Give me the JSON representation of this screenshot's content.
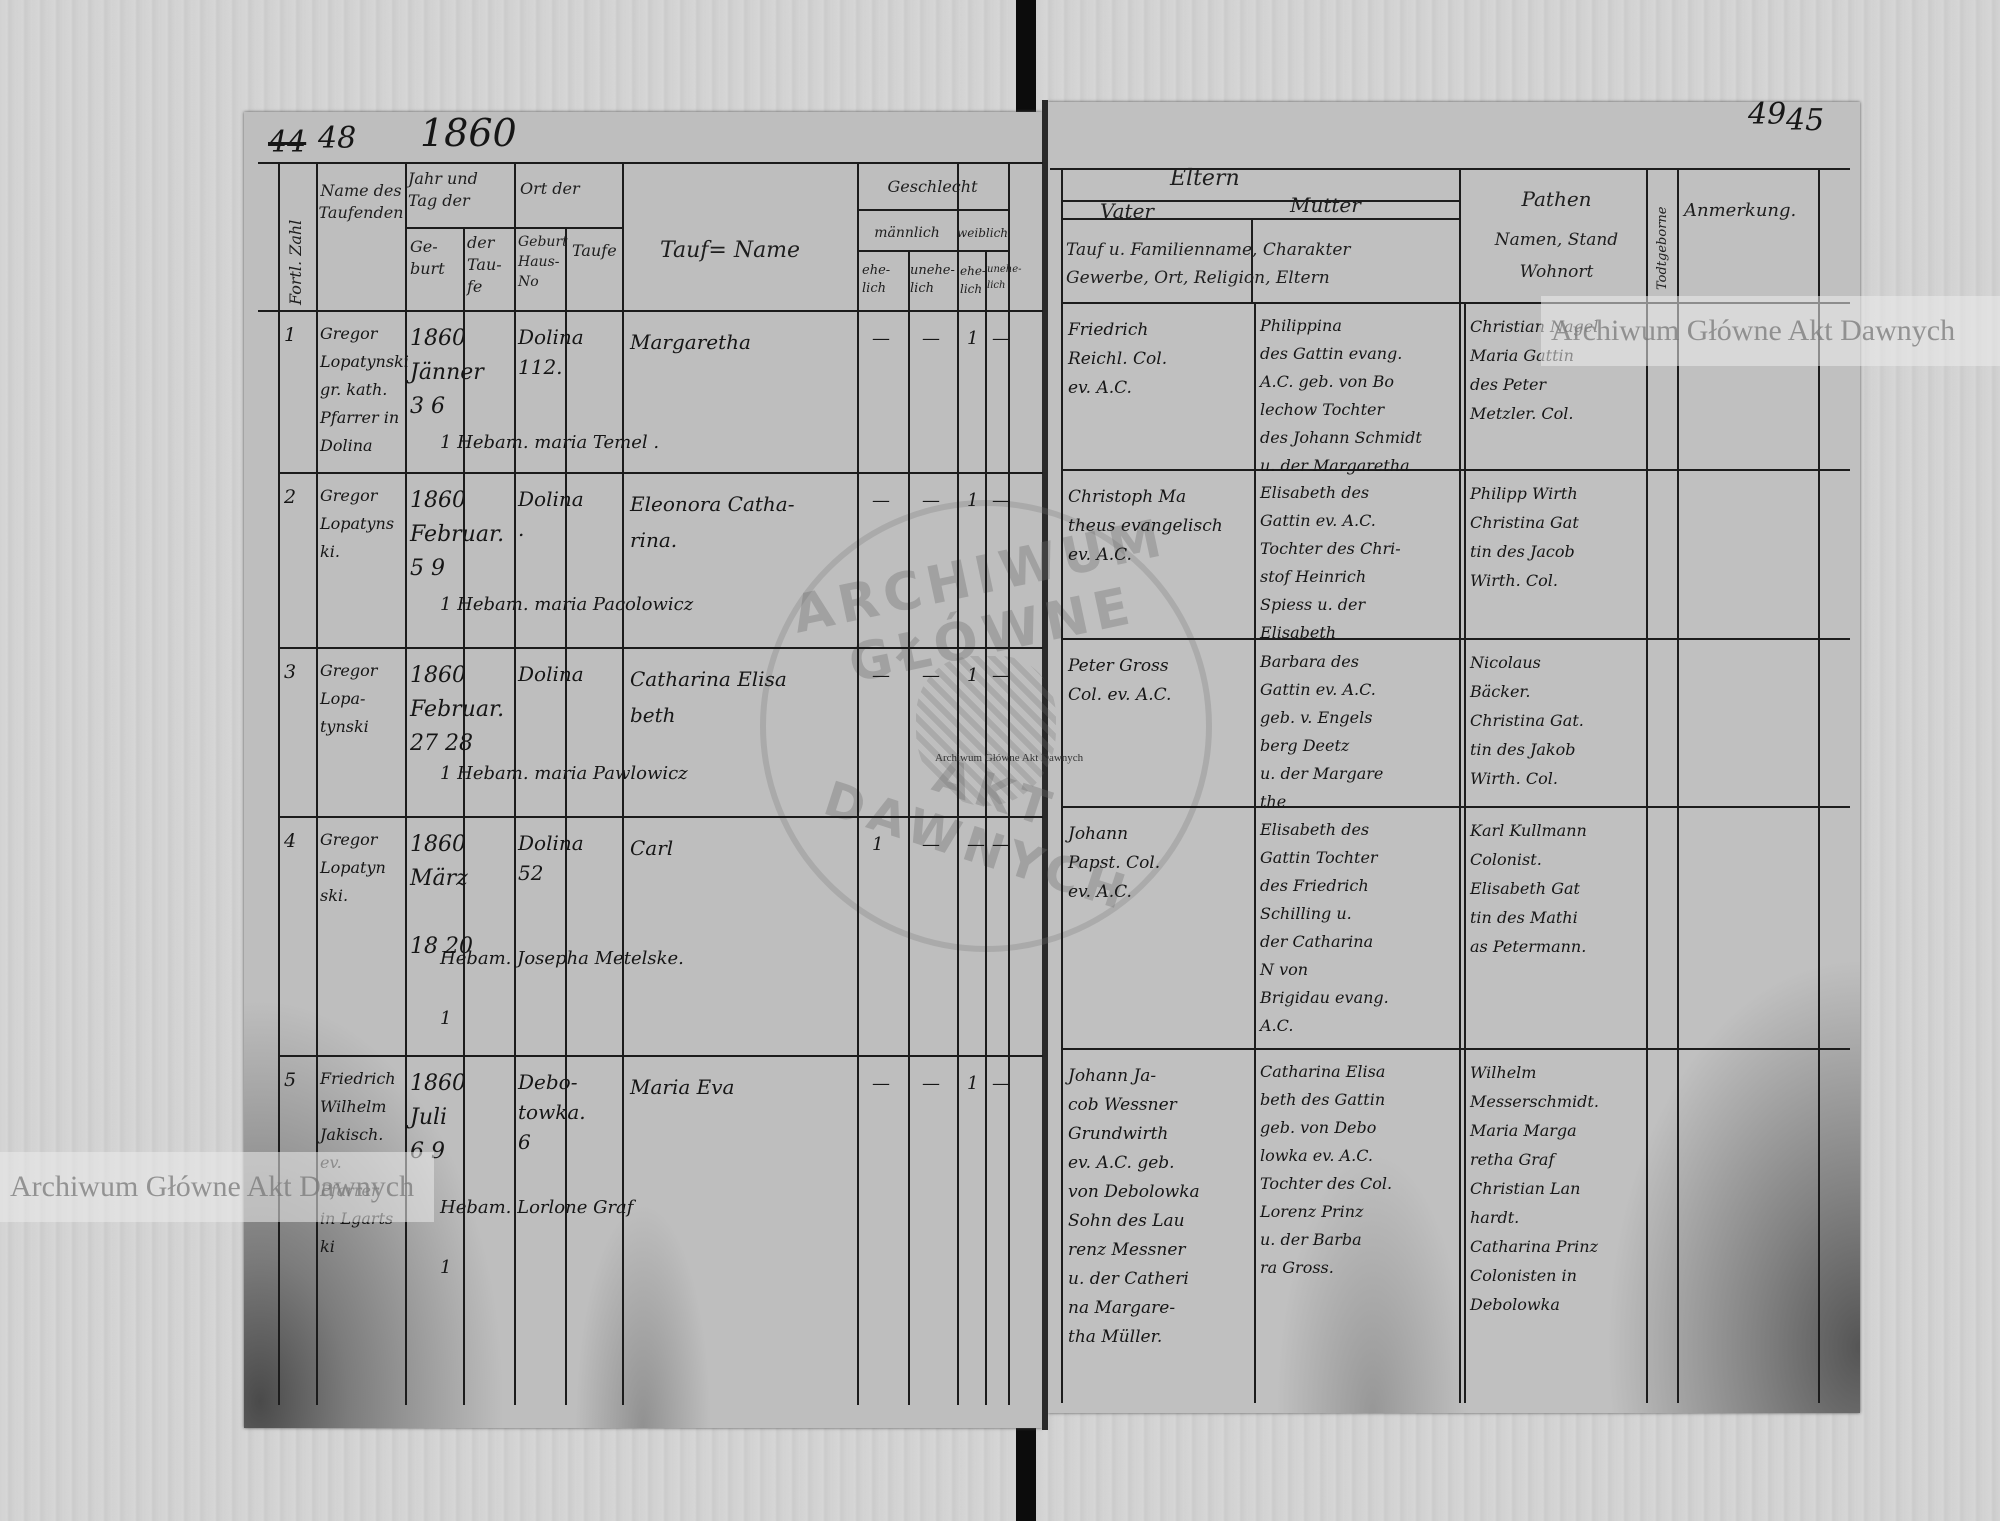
{
  "watermarks": {
    "top_right": "Archiwum Główne Akt Dawnych",
    "left": "Archiwum Główne Akt Dawnych",
    "center_small": "Archiwum Główne Akt Dawnych",
    "stamp_top": "ARCHIWUM GŁÓWNE",
    "stamp_bottom": "AKT DAWNYCH"
  },
  "left_page": {
    "page_number_crossed": "44",
    "page_number": "48",
    "year": "1860",
    "headers": {
      "number": "Fortl. Zahl",
      "priest": "Name des\nTaufenden",
      "date_group": "Jahr und\nTag der",
      "birth": "Ge-\nburt",
      "baptism": "der\nTau-\nfe",
      "place_group": "Ort der",
      "birthplace": "Geburt\nHaus-\nNo",
      "baptism_place": "Taufe",
      "name": "Tauf= Name",
      "sex": "Geschlecht",
      "male": "männlich",
      "female": "weiblich",
      "m_legit": "ehe-\nlich",
      "m_illegit": "unehe-\nlich",
      "f_legit": "ehe-\nlich",
      "f_illegit": "unehe-\nlich"
    }
  },
  "right_page": {
    "page_number": "49",
    "page_number_alt": "45",
    "headers": {
      "parents": "Eltern",
      "father": "Vater",
      "mother": "Mutter",
      "parents_detail": "Tauf u. Familienname, Charakter\nGewerbe, Ort, Religion, Eltern",
      "godparents": "Pathen",
      "godparents_detail": "Namen, Stand\nWohnort",
      "stillborn": "Todtgeborne",
      "remarks": "Anmerkung."
    }
  },
  "entries": [
    {
      "no": "1",
      "priest": "Gregor\nLopatynski\ngr. kath.\nPfarrer in\nDolina",
      "date": "1860\nJänner\n3     6",
      "place": "Dolina\n112.",
      "name": "Margaretha",
      "midwife": "1 Hebam. maria Temel .",
      "sex": [
        "—",
        "—",
        "1",
        "—"
      ],
      "father": "Friedrich\nReichl. Col.\nev. A.C.",
      "mother": "Philippina\ndes Gattin evang.\nA.C. geb. von Bo\nlechow Tochter\ndes Johann Schmidt\nu. der Margaretha",
      "godparents": "Christian Nagel\nMaria Gattin\ndes Peter\nMetzler. Col."
    },
    {
      "no": "2",
      "priest": "Gregor\nLopatyns\nki.",
      "date": "1860\nFebruar.\n5     9",
      "place": "Dolina\n.",
      "name": "Eleonora Catha-\nrina.",
      "midwife": "1 Hebam. maria Pacolowicz",
      "sex": [
        "—",
        "—",
        "1",
        "—"
      ],
      "father": "Christoph Ma\ntheus evangelisch\nev. A.C.",
      "mother": "Elisabeth des\nGattin ev. A.C.\nTochter des Chri-\nstof Heinrich\nSpiess u. der\nElisabeth",
      "godparents": "Philipp Wirth\nChristina Gat\ntin des Jacob\nWirth. Col."
    },
    {
      "no": "3",
      "priest": "Gregor\nLopa-\ntynski",
      "date": "1860\nFebruar.\n27   28",
      "place": "Dolina",
      "name": "Catharina Elisa\nbeth",
      "midwife": "1 Hebam. maria Pawlowicz",
      "sex": [
        "—",
        "—",
        "1",
        "—"
      ],
      "father": "Peter Gross\nCol. ev. A.C.",
      "mother": "Barbara des\nGattin ev. A.C.\ngeb. v. Engels\nberg Deetz\nu. der Margare\nthe",
      "godparents": "Nicolaus\nBäcker.\nChristina Gat.\ntin des Jakob\nWirth. Col."
    },
    {
      "no": "4",
      "priest": "Gregor\nLopatyn\nski.",
      "date": "1860\nMärz\n\n18   20",
      "place": "Dolina\n52",
      "name": "Carl",
      "midwife": "Hebam. Josepha Metelske.\n\n   1",
      "sex": [
        "1",
        "—",
        "—",
        "—"
      ],
      "father": "Johann\nPapst. Col.\nev. A.C.",
      "mother": "Elisabeth des\nGattin Tochter\ndes Friedrich\nSchilling u.\nder Catharina\nN          von\nBrigidau evang.\nA.C.",
      "godparents": "Karl Kullmann\nColonist.\nElisabeth Gat\ntin des Mathi\nas Petermann."
    },
    {
      "no": "5",
      "priest": "Friedrich\nWilhelm\nJakisch.\nev. Pfarrer\nin Lgarts\nki",
      "date": "1860\nJuli\n6     9",
      "place": "Debo-\ntowka.\n6",
      "name": "Maria Eva",
      "midwife": "Hebam. Lorlone Graf\n\n   1",
      "sex": [
        "—",
        "—",
        "1",
        "—"
      ],
      "father": "Johann Ja-\ncob Wessner\nGrundwirth\nev. A.C. geb.\nvon Debolowka\nSohn des Lau\nrenz Messner\nu. der Catheri\nna Margare-\ntha Müller.",
      "mother": "Catharina Elisa\nbeth des Gattin\ngeb. von Debo\nlowka ev. A.C.\nTochter des Col.\nLorenz Prinz\nu. der Barba\nra Gross.",
      "godparents": "Wilhelm\nMesserschmidt.\nMaria Marga\nretha Graf\nChristian Lan\nhardt.\nCatharina Prinz\nColonisten in\nDebolowka"
    }
  ]
}
